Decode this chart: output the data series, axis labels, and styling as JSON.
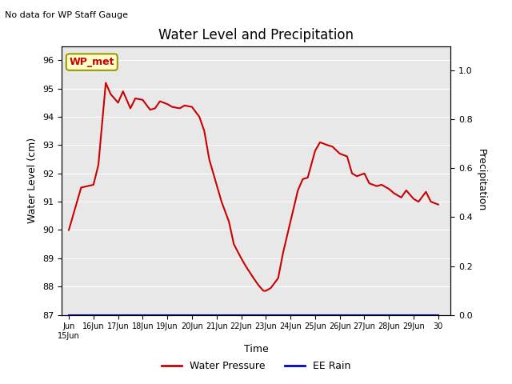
{
  "title": "Water Level and Precipitation",
  "subtitle": "No data for WP Staff Gauge",
  "xlabel": "Time",
  "ylabel_left": "Water Level (cm)",
  "ylabel_right": "Precipitation",
  "legend_label_red": "Water Pressure",
  "legend_label_blue": "EE Rain",
  "annotation": "WP_met",
  "ylim_left": [
    87.0,
    96.5
  ],
  "ylim_right": [
    0.0,
    1.1
  ],
  "yticks_left": [
    87.0,
    88.0,
    89.0,
    90.0,
    91.0,
    92.0,
    93.0,
    94.0,
    95.0,
    96.0
  ],
  "yticks_right": [
    0.0,
    0.2,
    0.4,
    0.6,
    0.8,
    1.0
  ],
  "plot_bg_color": "#e8e8e8",
  "red_color": "#cc0000",
  "blue_color": "#0000cc",
  "water_x": [
    0.0,
    0.5,
    1.0,
    1.2,
    1.5,
    1.7,
    2.0,
    2.2,
    2.5,
    2.7,
    3.0,
    3.3,
    3.5,
    3.7,
    4.0,
    4.2,
    4.5,
    4.7,
    5.0,
    5.3,
    5.5,
    5.7,
    6.0,
    6.2,
    6.5,
    6.7,
    7.0,
    7.2,
    7.5,
    7.7,
    7.9,
    8.0,
    8.2,
    8.5,
    8.7,
    9.0,
    9.3,
    9.5,
    9.7,
    10.0,
    10.2,
    10.5,
    10.7,
    11.0,
    11.3,
    11.5,
    11.7,
    12.0,
    12.2,
    12.5,
    12.7,
    13.0,
    13.2,
    13.5,
    13.7,
    14.0,
    14.2,
    14.5,
    14.7,
    15.0
  ],
  "water_y": [
    90.0,
    91.5,
    91.6,
    92.3,
    95.2,
    94.8,
    94.5,
    94.9,
    94.3,
    94.65,
    94.6,
    94.25,
    94.3,
    94.55,
    94.45,
    94.35,
    94.3,
    94.4,
    94.35,
    94.0,
    93.5,
    92.5,
    91.6,
    91.0,
    90.3,
    89.5,
    89.0,
    88.7,
    88.3,
    88.05,
    87.85,
    87.85,
    87.95,
    88.3,
    89.2,
    90.3,
    91.4,
    91.8,
    91.85,
    92.8,
    93.1,
    93.0,
    92.95,
    92.7,
    92.6,
    92.0,
    91.9,
    92.0,
    91.65,
    91.55,
    91.6,
    91.45,
    91.3,
    91.15,
    91.4,
    91.1,
    91.0,
    91.35,
    91.0,
    90.9
  ],
  "tick_positions": [
    0,
    1,
    2,
    3,
    4,
    5,
    6,
    7,
    8,
    9,
    10,
    11,
    12,
    13,
    14,
    15
  ],
  "tick_labels": [
    "Jun\n15Jun",
    "16Jun",
    "17Jun",
    "18Jun",
    "19Jun",
    "20Jun",
    "21Jun",
    "22Jun",
    "23Jun",
    "24Jun",
    "25Jun",
    "26Jun",
    "27Jun",
    "28Jun",
    "29Jun",
    "30"
  ]
}
